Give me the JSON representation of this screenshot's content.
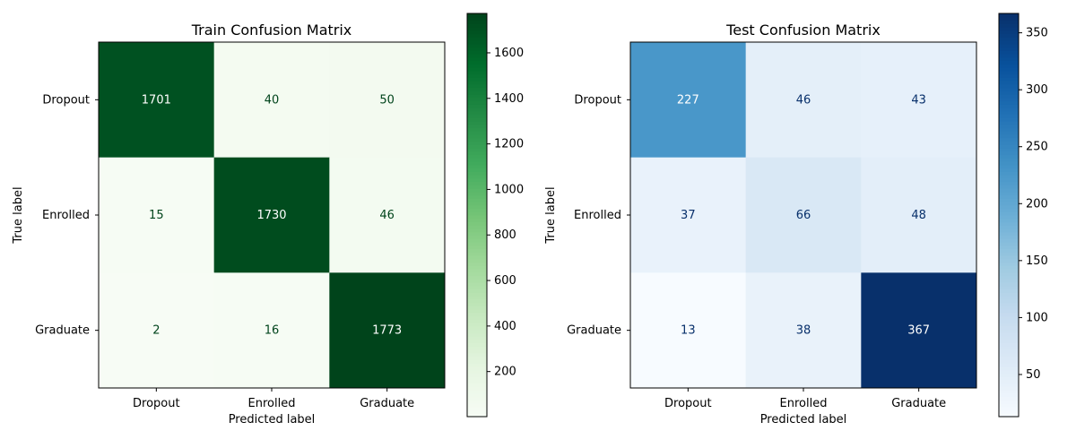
{
  "chart_data": [
    {
      "type": "heatmap",
      "title": "Train Confusion Matrix",
      "xlabel": "Predicted label",
      "ylabel": "True label",
      "x_categories": [
        "Dropout",
        "Enrolled",
        "Graduate"
      ],
      "y_categories": [
        "Dropout",
        "Enrolled",
        "Graduate"
      ],
      "values": [
        [
          1701,
          40,
          50
        ],
        [
          15,
          1730,
          46
        ],
        [
          2,
          16,
          1773
        ]
      ],
      "colormap": "Greens",
      "colorbar": {
        "range": [
          2,
          1773
        ],
        "ticks": [
          200,
          400,
          600,
          800,
          1000,
          1200,
          1400,
          1600
        ]
      }
    },
    {
      "type": "heatmap",
      "title": "Test Confusion Matrix",
      "xlabel": "Predicted label",
      "ylabel": "True label",
      "x_categories": [
        "Dropout",
        "Enrolled",
        "Graduate"
      ],
      "y_categories": [
        "Dropout",
        "Enrolled",
        "Graduate"
      ],
      "values": [
        [
          227,
          46,
          43
        ],
        [
          37,
          66,
          48
        ],
        [
          13,
          38,
          367
        ]
      ],
      "colormap": "Blues",
      "colorbar": {
        "range": [
          13,
          367
        ],
        "ticks": [
          50,
          100,
          150,
          200,
          250,
          300,
          350
        ]
      }
    }
  ],
  "colors": {
    "Greens": [
      "#f7fcf5",
      "#e5f5e0",
      "#c7e9c0",
      "#a1d99b",
      "#74c476",
      "#41ab5d",
      "#238b45",
      "#006d2c",
      "#00441b"
    ],
    "Blues": [
      "#f7fbff",
      "#deebf7",
      "#c6dbef",
      "#9ecae1",
      "#6baed6",
      "#4292c6",
      "#2171b5",
      "#08519c",
      "#08306b"
    ]
  }
}
